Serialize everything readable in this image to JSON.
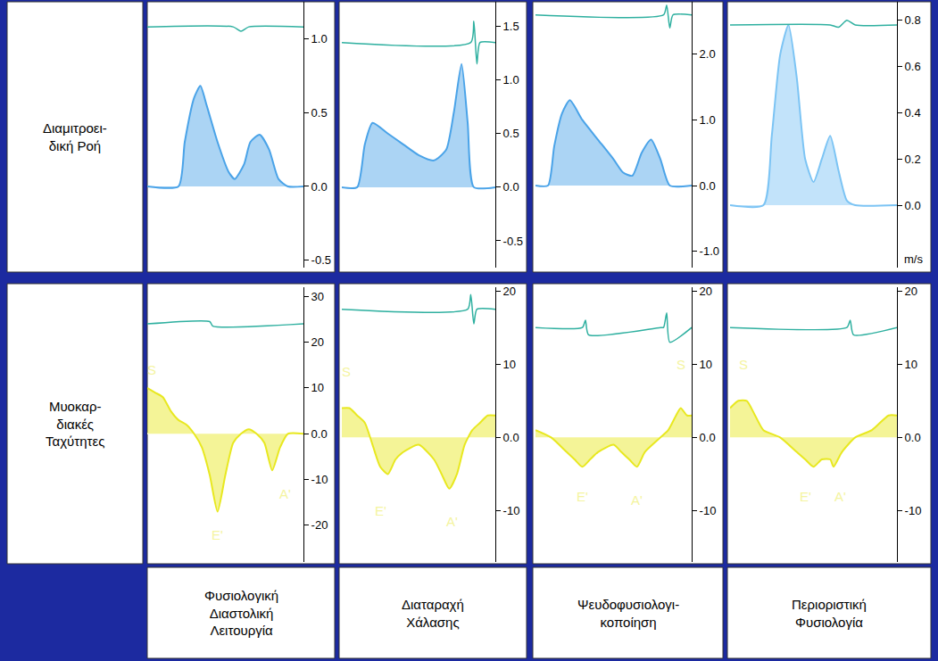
{
  "row_labels": [
    "Διαμιτροει-\nδική Ροή",
    "Μυοκαρ-\nδιακές\nΤαχύτητες"
  ],
  "column_labels": [
    "Φυσιολογική\nΔιαστολική\nΛειτουργία",
    "Διαταραχή\nΧάλασης",
    "Ψευδοφυσιολογι-\nκοποίηση",
    "Περιοριστική\nΦυσιολογία"
  ],
  "chart_data": [
    {
      "type": "area",
      "tick_labels": "y",
      "xlim": [
        0,
        1
      ],
      "ylim": [
        -0.55,
        1.25
      ],
      "yticks": [
        -0.5,
        {
          "value": 0,
          "label": "0.0"
        },
        0.5,
        {
          "value": 1,
          "label": "1.0"
        }
      ],
      "series": [
        {
          "color": "#4aa3e8",
          "x": [
            0,
            0.2,
            0.24,
            0.3,
            0.34,
            0.38,
            0.45,
            0.52,
            0.56,
            0.62,
            0.66,
            0.72,
            0.78,
            0.84,
            0.9,
            1
          ],
          "values": [
            0,
            0,
            0.3,
            0.6,
            0.68,
            0.55,
            0.3,
            0.1,
            0.05,
            0.15,
            0.3,
            0.35,
            0.25,
            0.05,
            0,
            0
          ]
        },
        {
          "type": "line",
          "color": "#2fb0a0",
          "x": [
            0,
            0.55,
            0.6,
            0.65,
            1
          ],
          "values": [
            1.08,
            1.08,
            1.05,
            1.08,
            1.08
          ]
        }
      ]
    },
    {
      "type": "area",
      "tick_labels": "y",
      "xlim": [
        0,
        1
      ],
      "ylim": [
        -0.75,
        1.73
      ],
      "yticks": [
        -0.5,
        {
          "value": 0,
          "label": "0.0"
        },
        0.5,
        {
          "value": 1,
          "label": "1.0"
        },
        1.5
      ],
      "series": [
        {
          "color": "#4aa3e8",
          "x": [
            0,
            0.1,
            0.15,
            0.2,
            0.3,
            0.4,
            0.5,
            0.6,
            0.68,
            0.73,
            0.78,
            0.82,
            0.86,
            1
          ],
          "values": [
            0,
            0,
            0.4,
            0.6,
            0.5,
            0.4,
            0.3,
            0.25,
            0.35,
            0.7,
            1.15,
            0.6,
            0,
            0
          ]
        },
        {
          "type": "line",
          "color": "#2fb0a0",
          "x": [
            0,
            0.84,
            0.86,
            0.88,
            0.9,
            1
          ],
          "values": [
            1.35,
            1.35,
            1.55,
            1.15,
            1.35,
            1.35
          ]
        }
      ]
    },
    {
      "type": "area",
      "tick_labels": "y",
      "xlim": [
        0,
        1
      ],
      "ylim": [
        -1.25,
        2.8
      ],
      "yticks": [
        {
          "value": -1,
          "label": "-1.0"
        },
        {
          "value": 0,
          "label": "0.0"
        },
        {
          "value": 1,
          "label": "1.0"
        },
        {
          "value": 2,
          "label": "2.0"
        }
      ],
      "series": [
        {
          "color": "#4aa3e8",
          "x": [
            0,
            0.08,
            0.12,
            0.17,
            0.22,
            0.3,
            0.4,
            0.5,
            0.56,
            0.62,
            0.68,
            0.74,
            0.8,
            0.86,
            1
          ],
          "values": [
            0,
            0,
            0.6,
            1.1,
            1.3,
            1.0,
            0.7,
            0.4,
            0.2,
            0.15,
            0.5,
            0.7,
            0.4,
            0,
            0
          ]
        },
        {
          "type": "line",
          "color": "#2fb0a0",
          "x": [
            0,
            0.82,
            0.84,
            0.86,
            0.88,
            1
          ],
          "values": [
            2.6,
            2.6,
            2.75,
            2.4,
            2.6,
            2.6
          ]
        }
      ]
    },
    {
      "type": "area",
      "tick_labels": "y",
      "xlim": [
        0,
        1
      ],
      "ylim": [
        -0.27,
        0.88
      ],
      "ylabel": "m/s",
      "yticks": [
        {
          "value": 0,
          "label": "0.0"
        },
        0.2,
        0.4,
        0.6,
        0.8
      ],
      "series": [
        {
          "color": "#7cc4f4",
          "x": [
            0,
            0.2,
            0.25,
            0.3,
            0.35,
            0.4,
            0.45,
            0.5,
            0.55,
            0.6,
            0.65,
            0.7,
            0.75,
            1
          ],
          "values": [
            0,
            0,
            0.3,
            0.65,
            0.78,
            0.55,
            0.2,
            0.1,
            0.2,
            0.3,
            0.15,
            0.02,
            0,
            0
          ]
        },
        {
          "type": "line",
          "color": "#2fb0a0",
          "x": [
            0,
            0.6,
            0.65,
            0.7,
            0.75,
            1
          ],
          "values": [
            0.78,
            0.78,
            0.77,
            0.8,
            0.78,
            0.78
          ]
        }
      ]
    },
    {
      "type": "area",
      "tick_labels": "y",
      "xlim": [
        0,
        1
      ],
      "ylim": [
        -28,
        32
      ],
      "yticks": [
        -20,
        -10,
        {
          "value": 0,
          "label": "0.0"
        },
        10,
        20,
        30
      ],
      "series": [
        {
          "color": "#e8e820",
          "x": [
            0,
            0.05,
            0.1,
            0.15,
            0.2,
            0.25,
            0.3,
            0.35,
            0.4,
            0.45,
            0.5,
            0.55,
            0.6,
            0.65,
            0.7,
            0.75,
            0.8,
            0.85,
            0.9,
            1
          ],
          "values": [
            10,
            9,
            8,
            5,
            3,
            2,
            0,
            -3,
            -9,
            -17,
            -9,
            -2,
            0,
            1,
            0,
            -2,
            -8,
            -3,
            0,
            0
          ]
        },
        {
          "type": "line",
          "color": "#2fb0a0",
          "x": [
            0,
            0.4,
            0.42,
            1
          ],
          "values": [
            24,
            24.5,
            23.5,
            24
          ]
        }
      ],
      "annotations": [
        {
          "text": "S",
          "x": 0.03,
          "y": 14
        },
        {
          "text": "E'",
          "x": 0.45,
          "y": -22
        },
        {
          "text": "A'",
          "x": 0.88,
          "y": -13
        }
      ]
    },
    {
      "type": "area",
      "tick_labels": "y",
      "xlim": [
        0,
        1
      ],
      "ylim": [
        -17,
        20.5
      ],
      "yticks": [
        -10,
        {
          "value": 0,
          "label": "0.0"
        },
        10,
        20
      ],
      "series": [
        {
          "color": "#e8e820",
          "x": [
            0,
            0.05,
            0.1,
            0.15,
            0.2,
            0.25,
            0.3,
            0.35,
            0.4,
            0.5,
            0.6,
            0.65,
            0.7,
            0.75,
            0.8,
            0.85,
            0.9,
            0.95,
            1
          ],
          "values": [
            4,
            4,
            3,
            2,
            -1,
            -4,
            -5,
            -3,
            -2,
            -1,
            -3,
            -5,
            -7,
            -5,
            -1,
            1,
            2,
            3,
            3
          ]
        },
        {
          "type": "line",
          "color": "#2fb0a0",
          "x": [
            0,
            0.82,
            0.84,
            0.86,
            0.88,
            1
          ],
          "values": [
            17.5,
            17.5,
            19.5,
            15.5,
            17.5,
            17.5
          ]
        }
      ],
      "annotations": [
        {
          "text": "S",
          "x": 0.03,
          "y": 9
        },
        {
          "text": "E'",
          "x": 0.25,
          "y": -10
        },
        {
          "text": "A'",
          "x": 0.72,
          "y": -11.5
        }
      ]
    },
    {
      "type": "area",
      "tick_labels": "y",
      "xlim": [
        0,
        1
      ],
      "ylim": [
        -17,
        20.5
      ],
      "yticks": [
        -10,
        {
          "value": 0,
          "label": "0.0"
        },
        10,
        20
      ],
      "series": [
        {
          "color": "#e8e820",
          "x": [
            0,
            0.1,
            0.2,
            0.25,
            0.3,
            0.35,
            0.4,
            0.5,
            0.55,
            0.6,
            0.65,
            0.7,
            0.8,
            0.85,
            0.9,
            0.93,
            0.97,
            1
          ],
          "values": [
            1,
            0,
            -2,
            -3,
            -4,
            -3,
            -2,
            -1,
            -2,
            -3,
            -4,
            -2,
            0,
            1,
            3,
            4,
            3,
            3
          ]
        },
        {
          "type": "line",
          "color": "#2fb0a0",
          "x": [
            0,
            0.3,
            0.32,
            0.34,
            0.8,
            0.82,
            0.84,
            0.86,
            1
          ],
          "values": [
            15,
            15,
            16,
            14,
            15,
            15,
            17,
            13,
            15
          ]
        }
      ],
      "annotations": [
        {
          "text": "E'",
          "x": 0.3,
          "y": -8
        },
        {
          "text": "A'",
          "x": 0.65,
          "y": -8.5
        },
        {
          "text": "S",
          "x": 0.93,
          "y": 10
        }
      ]
    },
    {
      "type": "area",
      "tick_labels": "y",
      "xlim": [
        0,
        1
      ],
      "ylim": [
        -17,
        20.5
      ],
      "yticks": [
        -10,
        {
          "value": 0,
          "label": "0.0"
        },
        10,
        20
      ],
      "series": [
        {
          "color": "#e8e820",
          "x": [
            0,
            0.05,
            0.1,
            0.15,
            0.2,
            0.3,
            0.4,
            0.45,
            0.5,
            0.55,
            0.6,
            0.62,
            0.67,
            0.75,
            0.85,
            0.95,
            1
          ],
          "values": [
            4,
            5,
            5,
            3,
            1,
            0,
            -2,
            -3,
            -4,
            -3,
            -3,
            -4,
            -2,
            0,
            1,
            3,
            3
          ]
        },
        {
          "type": "line",
          "color": "#2fb0a0",
          "x": [
            0,
            0.7,
            0.72,
            0.74,
            1
          ],
          "values": [
            15,
            15,
            16,
            14,
            15
          ]
        }
      ],
      "annotations": [
        {
          "text": "S",
          "x": 0.08,
          "y": 10
        },
        {
          "text": "E'",
          "x": 0.45,
          "y": -8
        },
        {
          "text": "A'",
          "x": 0.66,
          "y": -8
        }
      ]
    }
  ]
}
